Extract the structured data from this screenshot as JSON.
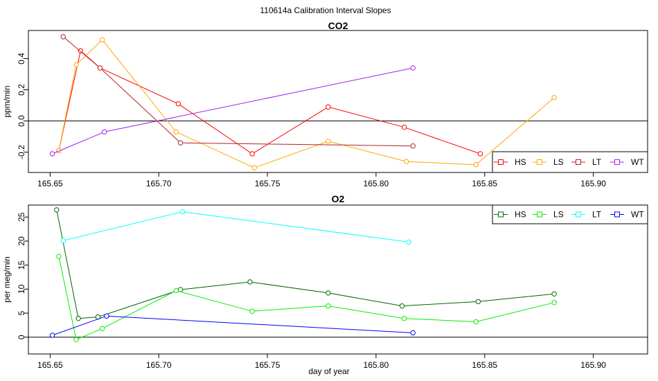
{
  "figure": {
    "title": "110614a   Calibration Interval Slopes",
    "xlabel": "day of year"
  },
  "chart_data": [
    {
      "type": "line",
      "title": "CO2",
      "xlabel": "",
      "ylabel": "ppm/min",
      "xlim": [
        165.64,
        165.925
      ],
      "ylim": [
        -0.33,
        0.58
      ],
      "xticks": [
        165.65,
        165.7,
        165.75,
        165.8,
        165.85,
        165.9
      ],
      "xtick_labels": [
        "165.65",
        "165.70",
        "165.75",
        "165.80",
        "165.85",
        "165.90"
      ],
      "yticks": [
        -0.2,
        0.0,
        0.2,
        0.4
      ],
      "ytick_labels": [
        "-0.2",
        "0.0",
        "0.2",
        "0.4"
      ],
      "hline": 0,
      "legend": {
        "position": "bottom-right",
        "entries": [
          "HS",
          "LS",
          "LT",
          "WT"
        ]
      },
      "series": [
        {
          "name": "HS",
          "color": "#ff0000",
          "x": [
            165.654,
            165.664,
            165.673,
            165.709,
            165.743,
            165.778,
            165.813,
            165.848
          ],
          "y": [
            -0.19,
            0.45,
            0.34,
            0.11,
            -0.21,
            0.09,
            -0.04,
            -0.21
          ]
        },
        {
          "name": "LS",
          "color": "#ffa500",
          "x": [
            165.654,
            165.662,
            165.674,
            165.708,
            165.744,
            165.778,
            165.814,
            165.846,
            165.882
          ],
          "y": [
            -0.19,
            0.36,
            0.52,
            -0.07,
            -0.3,
            -0.13,
            -0.26,
            -0.28,
            0.15
          ]
        },
        {
          "name": "LT",
          "color": "#b22222",
          "x": [
            165.656,
            165.673,
            165.71,
            165.817
          ],
          "y": [
            0.54,
            0.34,
            -0.14,
            -0.16
          ]
        },
        {
          "name": "WT",
          "color": "#a020f0",
          "x": [
            165.651,
            165.675,
            165.817
          ],
          "y": [
            -0.21,
            -0.07,
            0.34
          ]
        }
      ]
    },
    {
      "type": "line",
      "title": "O2",
      "xlabel": "day of year",
      "ylabel": "per meg/min",
      "xlim": [
        165.64,
        165.925
      ],
      "ylim": [
        -3.5,
        27.5
      ],
      "xticks": [
        165.65,
        165.7,
        165.75,
        165.8,
        165.85,
        165.9
      ],
      "xtick_labels": [
        "165.65",
        "165.70",
        "165.75",
        "165.80",
        "165.85",
        "165.90"
      ],
      "yticks": [
        0,
        5,
        10,
        15,
        20,
        25
      ],
      "ytick_labels": [
        "0",
        "5",
        "10",
        "15",
        "20",
        "25"
      ],
      "hline": 0,
      "legend": {
        "position": "top-right",
        "entries": [
          "HS",
          "LS",
          "LT",
          "WT"
        ]
      },
      "series": [
        {
          "name": "HS",
          "color": "#006400",
          "x": [
            165.653,
            165.663,
            165.672,
            165.71,
            165.742,
            165.778,
            165.812,
            165.847,
            165.882
          ],
          "y": [
            26.5,
            3.9,
            4.2,
            9.9,
            11.5,
            9.2,
            6.5,
            7.4,
            9.0
          ]
        },
        {
          "name": "LS",
          "color": "#00ee00",
          "x": [
            165.654,
            165.662,
            165.674,
            165.708,
            165.743,
            165.778,
            165.813,
            165.846,
            165.882
          ],
          "y": [
            16.8,
            -0.5,
            1.8,
            9.7,
            5.4,
            6.5,
            3.9,
            3.2,
            7.2
          ]
        },
        {
          "name": "LT",
          "color": "#00ffff",
          "x": [
            165.656,
            165.711,
            165.815
          ],
          "y": [
            20.1,
            26.1,
            19.8
          ]
        },
        {
          "name": "WT",
          "color": "#0000ff",
          "x": [
            165.651,
            165.676,
            165.817
          ],
          "y": [
            0.4,
            4.4,
            0.9
          ]
        }
      ]
    }
  ]
}
